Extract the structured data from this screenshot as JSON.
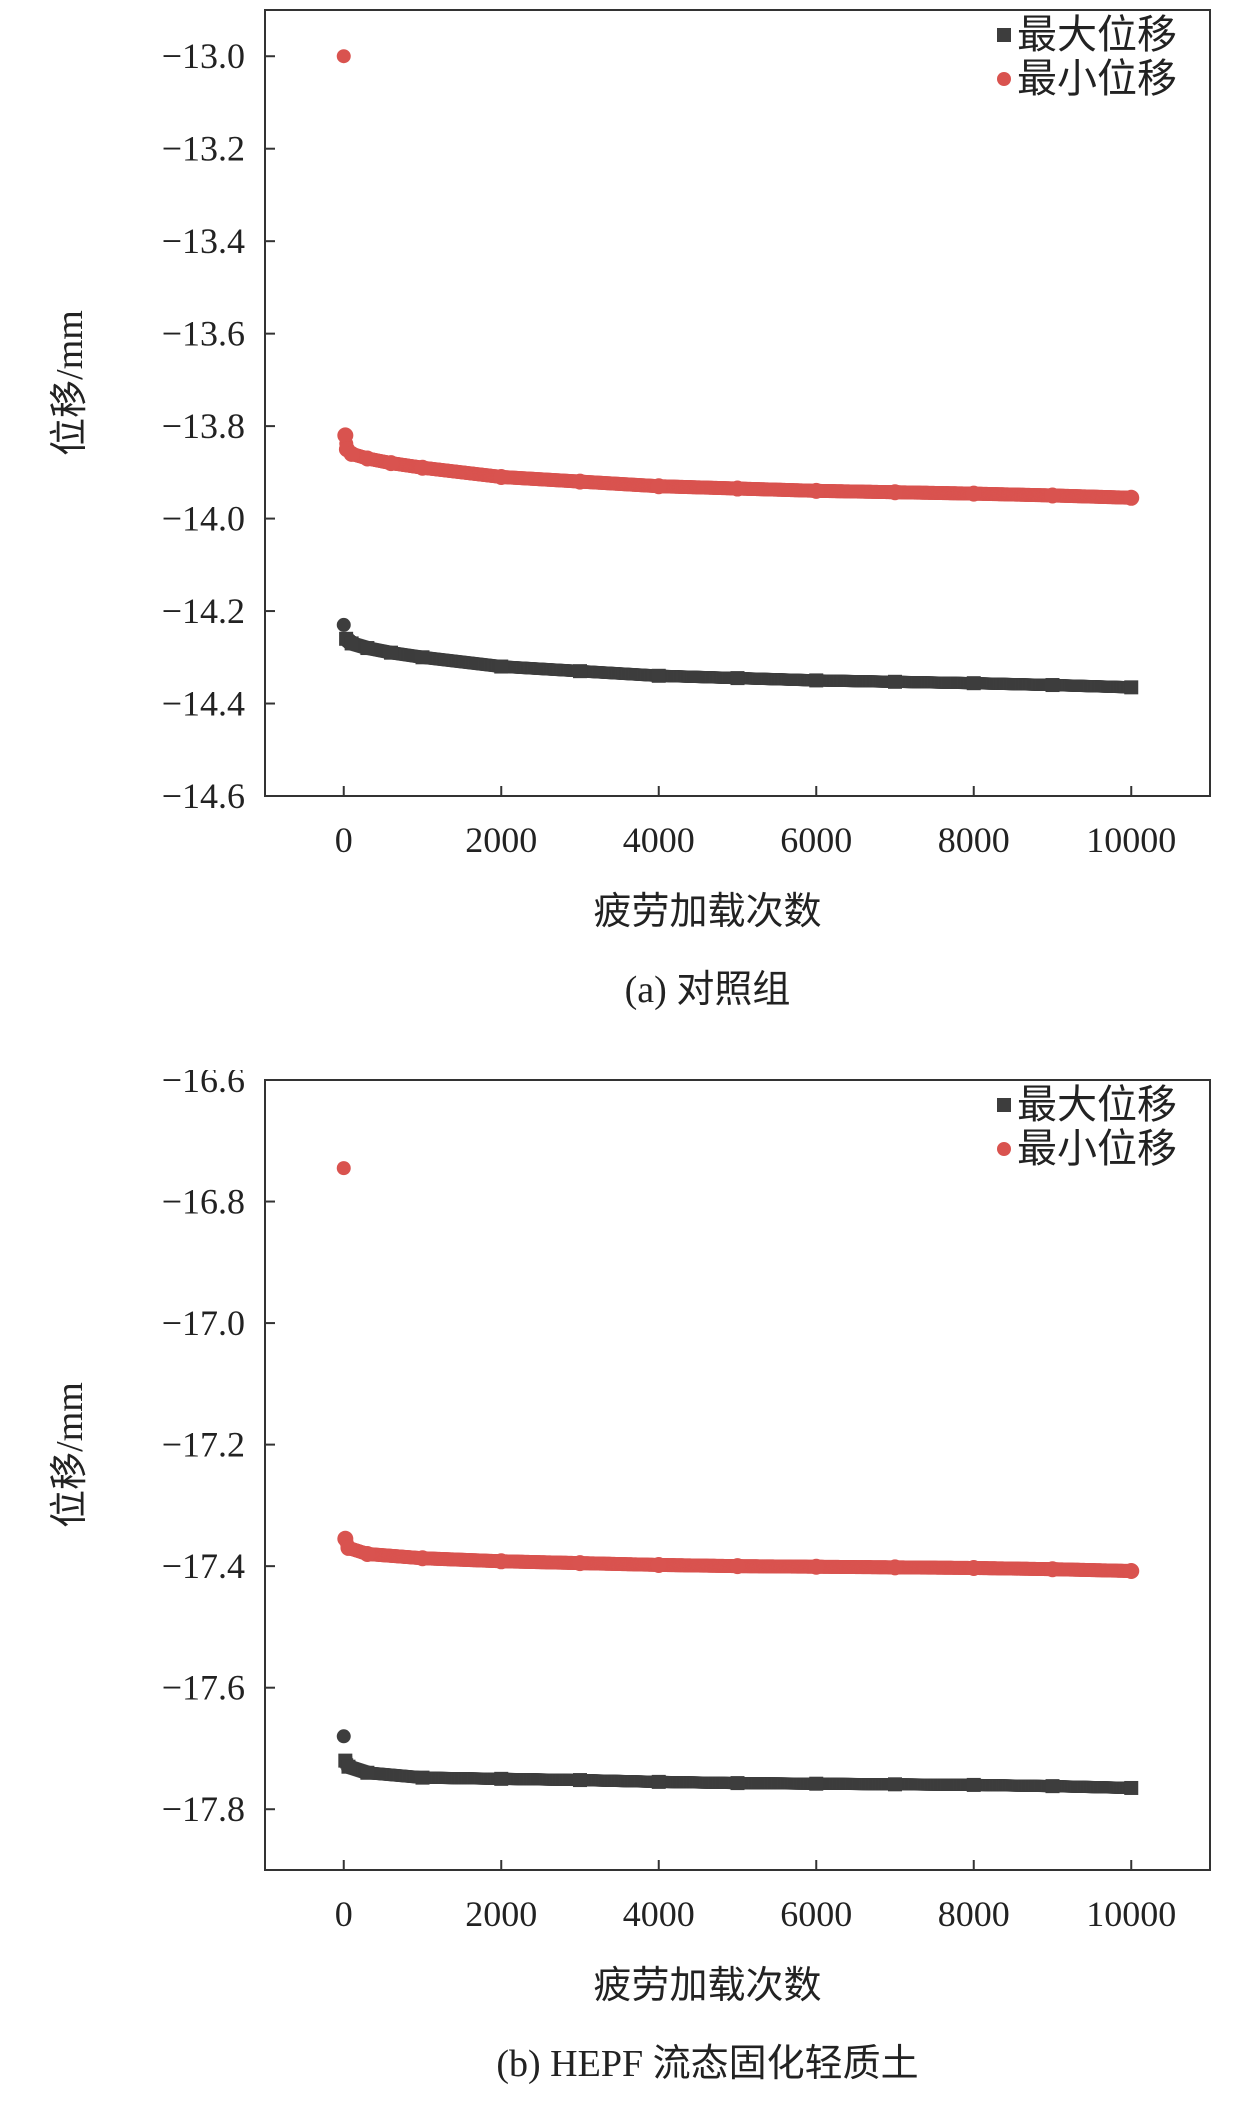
{
  "chart_data": [
    {
      "type": "scatter",
      "caption": "(a) 对照组",
      "xlabel": "疲劳加载次数",
      "ylabel": "位移/mm",
      "xlim": [
        -1000,
        11000
      ],
      "ylim": [
        -14.6,
        -12.9
      ],
      "x_ticks": [
        0,
        2000,
        4000,
        6000,
        8000,
        10000
      ],
      "x_tick_labels": [
        "0",
        "2000",
        "4000",
        "6000",
        "8000",
        "10000"
      ],
      "y_ticks": [
        -13.0,
        -13.2,
        -13.4,
        -13.6,
        -13.8,
        -14.0,
        -14.2,
        -14.4,
        -14.6
      ],
      "y_tick_labels": [
        "−13.0",
        "−13.2",
        "−13.4",
        "−13.6",
        "−13.8",
        "−14.0",
        "−14.2",
        "−14.4",
        "−14.6"
      ],
      "legend_position": "top-right",
      "grid": false,
      "series": [
        {
          "name": "最大位移",
          "marker": "square",
          "color": "#3d3d3d",
          "points": [
            [
              0,
              -14.23
            ],
            [
              30,
              -14.26
            ],
            [
              100,
              -14.27
            ],
            [
              300,
              -14.28
            ],
            [
              600,
              -14.29
            ],
            [
              1000,
              -14.3
            ],
            [
              2000,
              -14.32
            ],
            [
              3000,
              -14.33
            ],
            [
              4000,
              -14.34
            ],
            [
              5000,
              -14.345
            ],
            [
              6000,
              -14.35
            ],
            [
              7000,
              -14.353
            ],
            [
              8000,
              -14.356
            ],
            [
              9000,
              -14.36
            ],
            [
              10000,
              -14.365
            ]
          ]
        },
        {
          "name": "最小位移",
          "marker": "circle",
          "color": "#d9534f",
          "points": [
            [
              0,
              -13.0
            ],
            [
              20,
              -13.82
            ],
            [
              40,
              -13.85
            ],
            [
              100,
              -13.86
            ],
            [
              300,
              -13.87
            ],
            [
              600,
              -13.88
            ],
            [
              1000,
              -13.89
            ],
            [
              2000,
              -13.91
            ],
            [
              3000,
              -13.92
            ],
            [
              4000,
              -13.93
            ],
            [
              5000,
              -13.935
            ],
            [
              6000,
              -13.94
            ],
            [
              7000,
              -13.943
            ],
            [
              8000,
              -13.946
            ],
            [
              9000,
              -13.95
            ],
            [
              10000,
              -13.955
            ]
          ]
        }
      ]
    },
    {
      "type": "scatter",
      "caption": "(b) HEPF 流态固化轻质土",
      "xlabel": "疲劳加载次数",
      "ylabel": "位移/mm",
      "xlim": [
        -1000,
        11000
      ],
      "ylim": [
        -17.9,
        -16.6
      ],
      "x_ticks": [
        0,
        2000,
        4000,
        6000,
        8000,
        10000
      ],
      "x_tick_labels": [
        "0",
        "2000",
        "4000",
        "6000",
        "8000",
        "10000"
      ],
      "y_ticks": [
        -16.6,
        -16.8,
        -17.0,
        -17.2,
        -17.4,
        -17.6,
        -17.8
      ],
      "y_tick_labels": [
        "−16.6",
        "−16.8",
        "−17.0",
        "−17.2",
        "−17.4",
        "−17.6",
        "−17.8"
      ],
      "legend_position": "top-right",
      "grid": false,
      "series": [
        {
          "name": "最大位移",
          "marker": "square",
          "color": "#3d3d3d",
          "points": [
            [
              0,
              -17.68
            ],
            [
              20,
              -17.72
            ],
            [
              60,
              -17.73
            ],
            [
              300,
              -17.74
            ],
            [
              1000,
              -17.748
            ],
            [
              2000,
              -17.75
            ],
            [
              3000,
              -17.752
            ],
            [
              4000,
              -17.755
            ],
            [
              5000,
              -17.757
            ],
            [
              6000,
              -17.758
            ],
            [
              7000,
              -17.759
            ],
            [
              8000,
              -17.76
            ],
            [
              9000,
              -17.762
            ],
            [
              10000,
              -17.765
            ]
          ]
        },
        {
          "name": "最小位移",
          "marker": "circle",
          "color": "#d9534f",
          "points": [
            [
              0,
              -16.745
            ],
            [
              20,
              -17.355
            ],
            [
              60,
              -17.37
            ],
            [
              300,
              -17.38
            ],
            [
              1000,
              -17.387
            ],
            [
              2000,
              -17.392
            ],
            [
              3000,
              -17.395
            ],
            [
              4000,
              -17.398
            ],
            [
              5000,
              -17.4
            ],
            [
              6000,
              -17.401
            ],
            [
              7000,
              -17.402
            ],
            [
              8000,
              -17.403
            ],
            [
              9000,
              -17.405
            ],
            [
              10000,
              -17.408
            ]
          ]
        }
      ]
    }
  ]
}
